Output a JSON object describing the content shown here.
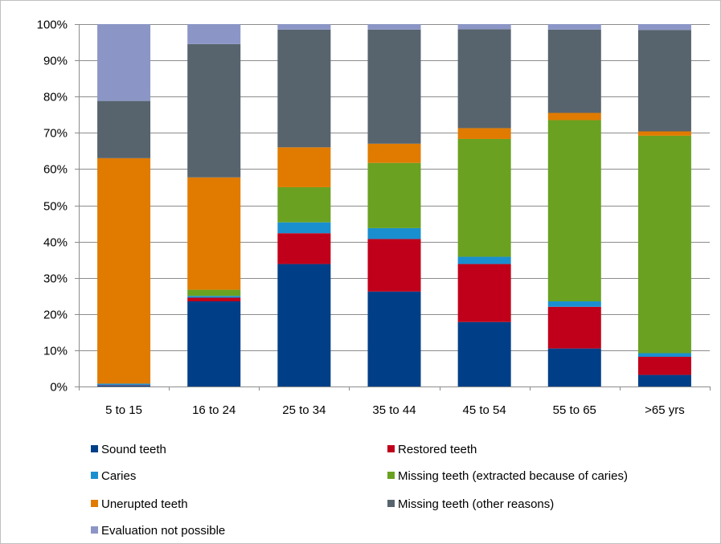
{
  "chart_data": {
    "type": "bar",
    "stacked": true,
    "percent_stacked": true,
    "categories": [
      "5 to 15",
      "16 to 24",
      "25 to 34",
      "35 to 44",
      "45 to 54",
      "55 to 65",
      ">65 yrs"
    ],
    "ylim": [
      0,
      100
    ],
    "yticks": [
      "0%",
      "10%",
      "20%",
      "30%",
      "40%",
      "50%",
      "60%",
      "70%",
      "80%",
      "90%",
      "100%"
    ],
    "grid": true,
    "legend_position": "bottom",
    "series": [
      {
        "name": "Sound teeth",
        "color": "#003f87",
        "values": [
          0.3,
          23.5,
          33.8,
          26.2,
          17.8,
          10.5,
          3.2
        ]
      },
      {
        "name": "Restored teeth",
        "color": "#c0001a",
        "values": [
          0.1,
          1.0,
          8.5,
          14.5,
          16.0,
          11.5,
          5.0
        ]
      },
      {
        "name": "Caries",
        "color": "#1a8fd0",
        "values": [
          0.4,
          0.5,
          3.0,
          3.0,
          2.0,
          1.5,
          1.0
        ]
      },
      {
        "name": "Missing teeth (extracted because of caries)",
        "color": "#6aa121",
        "values": [
          0.0,
          1.7,
          9.7,
          18.0,
          32.5,
          50.0,
          60.0
        ]
      },
      {
        "name": "Unerupted teeth",
        "color": "#e07b00",
        "values": [
          62.2,
          31.0,
          11.0,
          5.3,
          3.0,
          2.0,
          1.2
        ]
      },
      {
        "name": "Missing teeth (other reasons)",
        "color": "#57646e",
        "values": [
          15.8,
          36.8,
          32.5,
          31.5,
          27.3,
          23.0,
          28.0
        ]
      },
      {
        "name": "Evaluation not possible",
        "color": "#8c96c6",
        "values": [
          21.2,
          5.5,
          1.5,
          1.5,
          1.4,
          1.5,
          1.6
        ]
      }
    ]
  }
}
